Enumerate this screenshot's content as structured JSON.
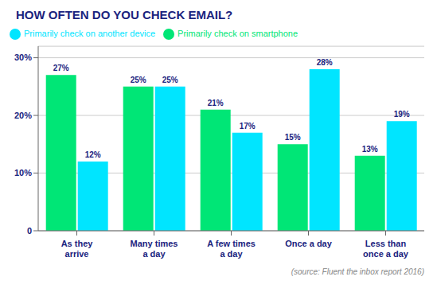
{
  "chart_data": {
    "type": "bar",
    "title": "HOW OFTEN DO YOU CHECK EMAIL?",
    "categories": [
      "As they\narrive",
      "Many times\na day",
      "A few times\na day",
      "Once a day",
      "Less than\nonce a day"
    ],
    "series": [
      {
        "name": "Primarily check on smartphone",
        "color": "#00e676",
        "values": [
          27,
          25,
          21,
          15,
          13
        ],
        "value_labels": [
          "27%",
          "25%",
          "21%",
          "15%",
          "13%"
        ]
      },
      {
        "name": "Primarily check on another device",
        "color": "#00e5ff",
        "values": [
          12,
          25,
          17,
          28,
          19
        ],
        "value_labels": [
          "12%",
          "25%",
          "17%",
          "28%",
          "19%"
        ]
      }
    ],
    "ylim": [
      0,
      32
    ],
    "yticks": [
      0,
      {
        "value": 10,
        "label": "10%"
      },
      {
        "value": 20,
        "label": "20%"
      },
      {
        "value": 30,
        "label": "30%"
      }
    ],
    "grid": true,
    "legend": "upper left",
    "data_labels": true,
    "annotations": [
      "(source: Fluent the inbox report 2016)"
    ]
  }
}
